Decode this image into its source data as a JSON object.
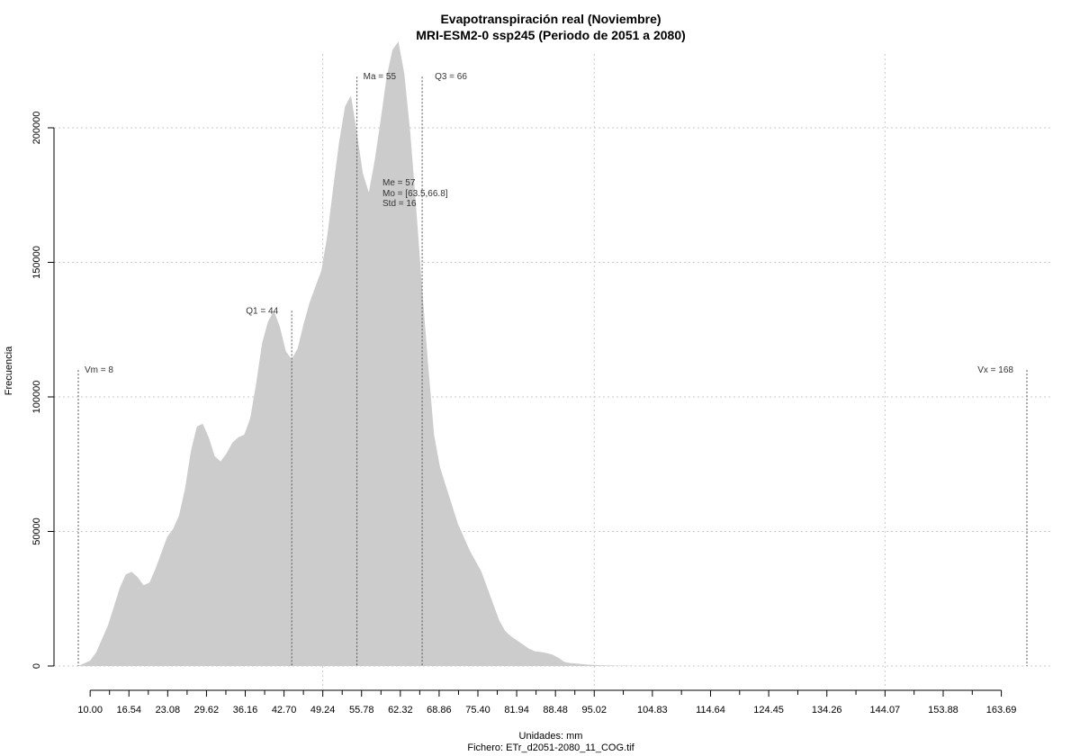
{
  "chart_data": {
    "type": "area",
    "title": "Evapotranspiración real (Noviembre)",
    "subtitle": "MRI-ESM2-0 ssp245 (Periodo de 2051 a 2080)",
    "xlabel": "Unidades: mm",
    "ylabel": "Frecuencia",
    "caption": "Fichero: ETr_d2051-2080_11_COG.tif",
    "xlim": [
      8,
      168
    ],
    "ylim": [
      0,
      210000
    ],
    "x_ticks": [
      10.0,
      16.54,
      23.08,
      29.62,
      36.16,
      42.7,
      49.24,
      55.78,
      62.32,
      68.86,
      75.4,
      81.94,
      88.48,
      95.02,
      104.83,
      114.64,
      124.45,
      134.26,
      144.07,
      153.88,
      163.69
    ],
    "x_tick_labels": [
      "10.00",
      "16.54",
      "23.08",
      "29.62",
      "36.16",
      "42.70",
      "49.24",
      "55.78",
      "62.32",
      "68.86",
      "75.40",
      "81.94",
      "88.48",
      "95.02",
      "104.83",
      "114.64",
      "124.45",
      "134.26",
      "144.07",
      "153.88",
      "163.69"
    ],
    "y_ticks": [
      0,
      50000,
      100000,
      150000,
      200000
    ],
    "y_tick_labels": [
      "0",
      "50000",
      "100000",
      "150000",
      "200000"
    ],
    "grid": true,
    "fill_color": "#cccccc",
    "series": [
      {
        "x": [
          8,
          9,
          10,
          11,
          12,
          13,
          14,
          15,
          16,
          17,
          18,
          19,
          20,
          21,
          22,
          23,
          24,
          25,
          26,
          27,
          28,
          29,
          30,
          31,
          32,
          33,
          34,
          35,
          36,
          37,
          38,
          39,
          40,
          41,
          42,
          43,
          44,
          45,
          46,
          47,
          48,
          49,
          50,
          51,
          52,
          53,
          54,
          55,
          56,
          57,
          58,
          59,
          60,
          61,
          62,
          63,
          64,
          65,
          66,
          67,
          68,
          69,
          70,
          71,
          72,
          73,
          74,
          75,
          76,
          77,
          78,
          79,
          80,
          81,
          82,
          83,
          84,
          85,
          86,
          87,
          88,
          89,
          90,
          91,
          92,
          93,
          94,
          95,
          96,
          97,
          98,
          99,
          100,
          101,
          102,
          104,
          106,
          110,
          120,
          130,
          140,
          150,
          160,
          168
        ],
        "y": [
          0,
          1000,
          2000,
          5000,
          10000,
          15000,
          22000,
          29000,
          34000,
          35000,
          33000,
          30000,
          31000,
          36000,
          42000,
          48000,
          51000,
          56000,
          66000,
          80000,
          89000,
          90000,
          85000,
          78000,
          76000,
          79000,
          83000,
          85000,
          86000,
          92000,
          105000,
          120000,
          128000,
          132000,
          126000,
          117000,
          114000,
          118000,
          127000,
          135000,
          141000,
          147000,
          160000,
          178000,
          195000,
          208000,
          212000,
          198000,
          183000,
          176000,
          188000,
          203000,
          219000,
          229000,
          232000,
          220000,
          198000,
          170000,
          140000,
          112000,
          86000,
          74000,
          67000,
          60000,
          53000,
          48000,
          43000,
          39000,
          35000,
          29000,
          23000,
          17000,
          13000,
          11000,
          9500,
          8000,
          6500,
          5500,
          5200,
          4800,
          4200,
          3000,
          1500,
          1100,
          900,
          700,
          500,
          400,
          300,
          250,
          200,
          150,
          120,
          80,
          50,
          30,
          20,
          15,
          10,
          8,
          6,
          5,
          4,
          0
        ]
      }
    ],
    "vlines": [
      {
        "x": 8,
        "y": 110000,
        "label": "Vm = 8"
      },
      {
        "x": 44,
        "y": 132000,
        "label": "Q1 = 44"
      },
      {
        "x": 55,
        "y": 219000,
        "label": "Ma = 55"
      },
      {
        "x": 66,
        "y": 219000,
        "label": "Q3 = 66"
      },
      {
        "x": 168,
        "y": 110000,
        "label": "Vx = 168"
      }
    ],
    "stats_labels": [
      "Me = 57",
      "Mo = [63.5,66.8]",
      "Std = 16"
    ]
  }
}
